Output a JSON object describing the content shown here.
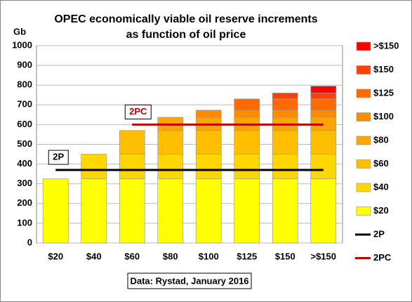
{
  "chart_data": {
    "type": "bar",
    "stacked": true,
    "title": [
      "OPEC economically viable oil reserve  increments",
      "as function of oil price"
    ],
    "y_label": "Gb",
    "annotation": "Data: Rystad, January 2016",
    "categories": [
      "$20",
      "$40",
      "$60",
      "$80",
      "$100",
      "$125",
      "$150",
      ">$150"
    ],
    "ylim": [
      0,
      1000
    ],
    "yticks": [
      0,
      100,
      200,
      300,
      400,
      500,
      600,
      700,
      800,
      900,
      1000
    ],
    "grid": true,
    "legend": "right",
    "series": [
      {
        "name": "$20",
        "color": "#ffff00",
        "values": [
          325,
          325,
          325,
          325,
          325,
          325,
          325,
          325
        ]
      },
      {
        "name": "$40",
        "color": "#ffd700",
        "values": [
          null,
          125,
          125,
          125,
          125,
          125,
          125,
          125
        ]
      },
      {
        "name": "$60",
        "color": "#ffbf00",
        "values": [
          null,
          null,
          120,
          120,
          120,
          120,
          120,
          120
        ]
      },
      {
        "name": "$80",
        "color": "#ffa500",
        "values": [
          null,
          null,
          null,
          67,
          67,
          67,
          67,
          67
        ]
      },
      {
        "name": "$100",
        "color": "#ff8c00",
        "values": [
          null,
          null,
          null,
          null,
          36,
          36,
          36,
          36
        ]
      },
      {
        "name": "$125",
        "color": "#ff6a00",
        "values": [
          null,
          null,
          null,
          null,
          null,
          57,
          57,
          57
        ]
      },
      {
        "name": "$150",
        "color": "#ff4000",
        "values": [
          null,
          null,
          null,
          null,
          null,
          null,
          30,
          30
        ]
      },
      {
        "name": ">$150",
        "color": "#ff0000",
        "values": [
          null,
          null,
          null,
          null,
          null,
          null,
          null,
          35
        ]
      },
      {
        "name": "2P",
        "type": "line",
        "color": "#000000",
        "values": [
          370,
          370,
          370,
          370,
          370,
          370,
          370,
          370
        ]
      },
      {
        "name": "2PC",
        "type": "line",
        "color": "#c00000",
        "values": [
          null,
          null,
          600,
          600,
          600,
          600,
          600,
          600
        ]
      }
    ]
  }
}
